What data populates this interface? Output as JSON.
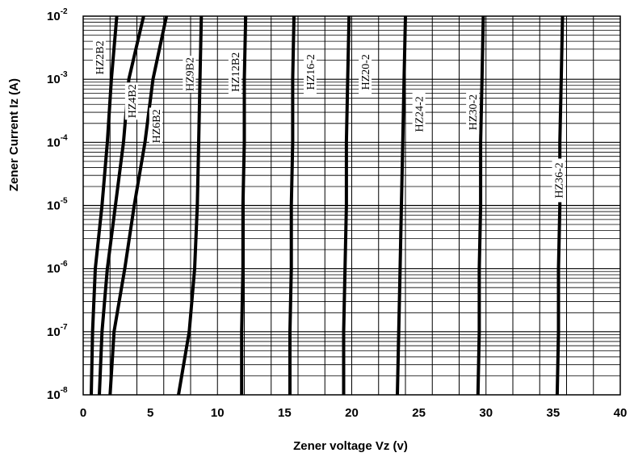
{
  "chart_data": {
    "type": "line",
    "xlabel": "Zener voltage Vz (v)",
    "ylabel": "Zener Current  Iz (A)",
    "xlim": [
      0,
      40
    ],
    "ylim": [
      1e-08,
      0.01
    ],
    "y_scale": "log",
    "grid": true,
    "x_ticks": [
      "0",
      "5",
      "10",
      "15",
      "20",
      "25",
      "30",
      "35",
      "40"
    ],
    "y_ticks": [
      {
        "base": "10",
        "exp": "-8"
      },
      {
        "base": "10",
        "exp": "-7"
      },
      {
        "base": "10",
        "exp": "-6"
      },
      {
        "base": "10",
        "exp": "-5"
      },
      {
        "base": "10",
        "exp": "-4"
      },
      {
        "base": "10",
        "exp": "-3"
      },
      {
        "base": "10",
        "exp": "-2"
      }
    ],
    "series": [
      {
        "name": "HZ2B2",
        "x": [
          0.6,
          0.7,
          0.9,
          1.4,
          1.8,
          2.1,
          2.5
        ],
        "y": [
          1e-08,
          1e-07,
          1e-06,
          1e-05,
          0.0001,
          0.001,
          0.01
        ]
      },
      {
        "name": "HZ4B2",
        "x": [
          1.2,
          1.4,
          1.8,
          2.4,
          3.0,
          3.4,
          4.5
        ],
        "y": [
          1e-08,
          1e-07,
          1e-06,
          1e-05,
          0.0001,
          0.001,
          0.01
        ]
      },
      {
        "name": "HZ6B2",
        "x": [
          2.0,
          2.3,
          3.1,
          3.8,
          4.6,
          5.2,
          6.2
        ],
        "y": [
          1e-08,
          1e-07,
          1e-06,
          1e-05,
          0.0001,
          0.001,
          0.01
        ]
      },
      {
        "name": "HZ9B2",
        "x": [
          7.1,
          7.9,
          8.3,
          8.5,
          8.6,
          8.7,
          8.8
        ],
        "y": [
          1e-08,
          1e-07,
          1e-06,
          1e-05,
          0.0001,
          0.001,
          0.01
        ]
      },
      {
        "name": "HZ12B2",
        "x": [
          11.8,
          11.8,
          11.9,
          11.9,
          12.0,
          12.0,
          12.1
        ],
        "y": [
          1e-08,
          1e-07,
          1e-06,
          1e-05,
          0.0001,
          0.001,
          0.01
        ]
      },
      {
        "name": "HZ16-2",
        "x": [
          15.4,
          15.4,
          15.5,
          15.5,
          15.6,
          15.6,
          15.7
        ],
        "y": [
          1e-08,
          1e-07,
          1e-06,
          1e-05,
          0.0001,
          0.001,
          0.01
        ]
      },
      {
        "name": "HZ20-2",
        "x": [
          19.4,
          19.4,
          19.5,
          19.6,
          19.6,
          19.7,
          19.8
        ],
        "y": [
          1e-08,
          1e-07,
          1e-06,
          1e-05,
          0.0001,
          0.001,
          0.01
        ]
      },
      {
        "name": "HZ24-2",
        "x": [
          23.4,
          23.5,
          23.6,
          23.7,
          23.8,
          23.9,
          24.0
        ],
        "y": [
          1e-08,
          1e-07,
          1e-06,
          1e-05,
          0.0001,
          0.001,
          0.01
        ]
      },
      {
        "name": "HZ30-2",
        "x": [
          29.4,
          29.5,
          29.5,
          29.6,
          29.6,
          29.7,
          29.8
        ],
        "y": [
          1e-08,
          1e-07,
          1e-06,
          1e-05,
          0.0001,
          0.001,
          0.01
        ]
      },
      {
        "name": "HZ36-2",
        "x": [
          35.3,
          35.4,
          35.4,
          35.5,
          35.5,
          35.6,
          35.7
        ],
        "y": [
          1e-08,
          1e-07,
          1e-06,
          1e-05,
          0.0001,
          0.001,
          0.01
        ]
      }
    ],
    "curve_labels": [
      {
        "text": "HZ2B2",
        "x": 1.2,
        "y": 0.0022
      },
      {
        "text": "HZ4B2",
        "x": 3.6,
        "y": 0.00045
      },
      {
        "text": "HZ6B2",
        "x": 5.4,
        "y": 0.00018
      },
      {
        "text": "HZ9B2",
        "x": 7.9,
        "y": 0.0012
      },
      {
        "text": "HZ12B2",
        "x": 11.3,
        "y": 0.0013
      },
      {
        "text": "HZ16-2",
        "x": 16.9,
        "y": 0.0013
      },
      {
        "text": "HZ20-2",
        "x": 21.0,
        "y": 0.0013
      },
      {
        "text": "HZ24-2",
        "x": 25.0,
        "y": 0.00028
      },
      {
        "text": "HZ30-2",
        "x": 29.0,
        "y": 0.0003
      },
      {
        "text": "HZ36-2",
        "x": 35.4,
        "y": 2.5e-05
      }
    ]
  }
}
